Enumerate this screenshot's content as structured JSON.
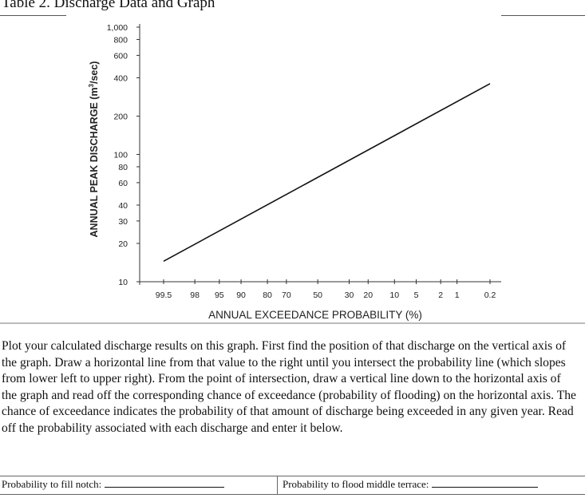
{
  "page": {
    "title": "Table 2. Discharge Data and Graph",
    "instructions": "Plot your calculated discharge results on this graph. First find the position of that discharge on the vertical axis of the graph. Draw a horizontal line from that value to the right until you intersect the probability line (which slopes from lower left to upper right). From the point of intersection, draw a vertical line down to the horizontal axis of the graph and read off the corresponding chance of exceedance (probability of flooding) on the horizontal axis. The chance of exceedance indicates the probability of that amount of discharge being exceeded in any given year. Read off the probability associated with each discharge and enter it below.",
    "answer_left_label": "Probability to fill notch:",
    "answer_right_label": "Probability to flood middle terrace:"
  },
  "chart_data": {
    "type": "line",
    "xlabel": "ANNUAL EXCEEDANCE PROBABILITY (%)",
    "ylabel_main": "ANNUAL PEAK DISCHARGE (m",
    "ylabel_sup": "3",
    "ylabel_tail": "/sec)",
    "y_scale": "log",
    "x_scale": "normal probability",
    "ylim": [
      10,
      1000
    ],
    "xlim": [
      99.8,
      0.1
    ],
    "y_ticks": [
      {
        "label": "1,000",
        "value": 1000
      },
      {
        "label": "800",
        "value": 800
      },
      {
        "label": "600",
        "value": 600
      },
      {
        "label": "400",
        "value": 400
      },
      {
        "label": "200",
        "value": 200
      },
      {
        "label": "100",
        "value": 100
      },
      {
        "label": "80",
        "value": 80
      },
      {
        "label": "60",
        "value": 60
      },
      {
        "label": "40",
        "value": 40
      },
      {
        "label": "30",
        "value": 30
      },
      {
        "label": "20",
        "value": 20
      },
      {
        "label": "10",
        "value": 10
      }
    ],
    "x_ticks": [
      {
        "label": "99.5",
        "value": 99.5
      },
      {
        "label": "98",
        "value": 98
      },
      {
        "label": "95",
        "value": 95
      },
      {
        "label": "90",
        "value": 90
      },
      {
        "label": "80",
        "value": 80
      },
      {
        "label": "70",
        "value": 70
      },
      {
        "label": "50",
        "value": 50
      },
      {
        "label": "30",
        "value": 30
      },
      {
        "label": "20",
        "value": 20
      },
      {
        "label": "10",
        "value": 10
      },
      {
        "label": "5",
        "value": 5
      },
      {
        "label": "2",
        "value": 2
      },
      {
        "label": "1",
        "value": 1
      },
      {
        "label": "0.2",
        "value": 0.2
      }
    ],
    "series": [
      {
        "x": [
          99.5,
          0.2
        ],
        "y": [
          14.5,
          360
        ]
      }
    ],
    "grid": false,
    "legend": "none"
  }
}
